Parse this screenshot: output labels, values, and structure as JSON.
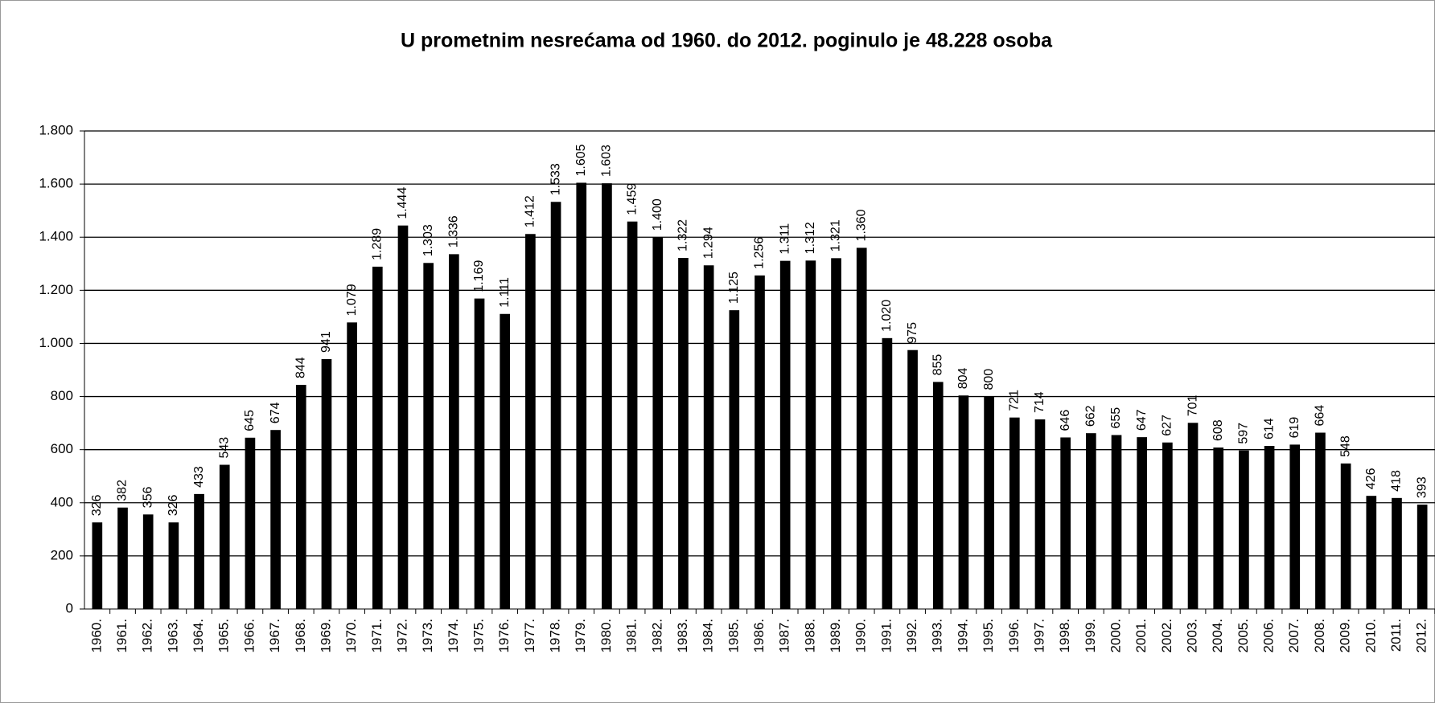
{
  "chart_data": {
    "type": "bar",
    "title": "U prometnim nesrećama od 1960. do 2012. poginulo je 48.228 osoba",
    "categories": [
      "1960.",
      "1961.",
      "1962.",
      "1963.",
      "1964.",
      "1965.",
      "1966.",
      "1967.",
      "1968.",
      "1969.",
      "1970.",
      "1971.",
      "1972.",
      "1973.",
      "1974.",
      "1975.",
      "1976.",
      "1977.",
      "1978.",
      "1979.",
      "1980.",
      "1981.",
      "1982.",
      "1983.",
      "1984.",
      "1985.",
      "1986.",
      "1987.",
      "1988.",
      "1989.",
      "1990.",
      "1991.",
      "1992.",
      "1993.",
      "1994.",
      "1995.",
      "1996.",
      "1997.",
      "1998.",
      "1999.",
      "2000.",
      "2001.",
      "2002.",
      "2003.",
      "2004.",
      "2005.",
      "2006.",
      "2007.",
      "2008.",
      "2009.",
      "2010.",
      "2011.",
      "2012."
    ],
    "values": [
      326,
      382,
      356,
      326,
      433,
      543,
      645,
      674,
      844,
      941,
      1079,
      1289,
      1444,
      1303,
      1336,
      1169,
      1111,
      1412,
      1533,
      1605,
      1603,
      1459,
      1400,
      1322,
      1294,
      1125,
      1256,
      1311,
      1312,
      1321,
      1360,
      1020,
      975,
      855,
      804,
      800,
      721,
      714,
      646,
      662,
      655,
      647,
      627,
      701,
      608,
      597,
      614,
      619,
      664,
      548,
      426,
      418,
      393
    ],
    "value_labels": [
      "326",
      "382",
      "356",
      "326",
      "433",
      "543",
      "645",
      "674",
      "844",
      "941",
      "1.079",
      "1.289",
      "1.444",
      "1.303",
      "1.336",
      "1.169",
      "1.111",
      "1.412",
      "1.533",
      "1.605",
      "1.603",
      "1.459",
      "1.400",
      "1.322",
      "1.294",
      "1.125",
      "1.256",
      "1.311",
      "1.312",
      "1.321",
      "1.360",
      "1.020",
      "975",
      "855",
      "804",
      "800",
      "721",
      "714",
      "646",
      "662",
      "655",
      "647",
      "627",
      "701",
      "608",
      "597",
      "614",
      "619",
      "664",
      "548",
      "426",
      "418",
      "393"
    ],
    "color": "#000000",
    "ylim": [
      0,
      1800
    ],
    "yticks": [
      0,
      200,
      400,
      600,
      800,
      {
        "value": 1000,
        "label": "1.000"
      },
      {
        "value": 1200,
        "label": "1.200"
      },
      {
        "value": 1400,
        "label": "1.400"
      },
      {
        "value": 1600,
        "label": "1.600"
      },
      {
        "value": 1800,
        "label": "1.800"
      }
    ],
    "grid": true
  }
}
